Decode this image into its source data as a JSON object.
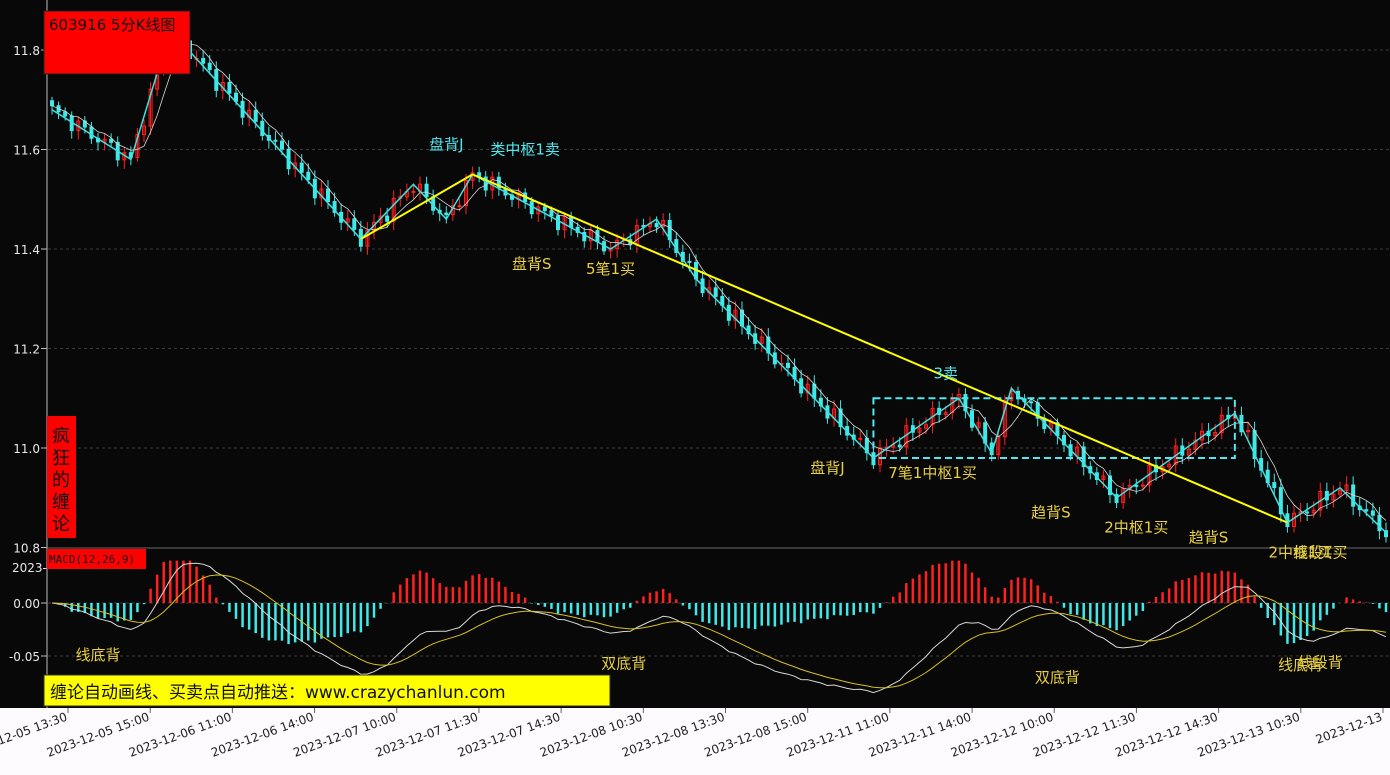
{
  "header": {
    "title": "603916 5分K线图"
  },
  "side_label": "疯狂的缠论",
  "macd_label": "MACD(12,26,9)",
  "macd_extra": "2023-",
  "footer_banner": "缠论自动画线、买卖点自动推送：www.crazychanlun.com",
  "colors": {
    "background": "#080808",
    "up": "#ff2020",
    "down": "#40e8e8",
    "bi_line": "#40e0e0",
    "trend_line": "#ffff00",
    "annotation": "#e8d040",
    "annotation_cyan": "#50e8f0",
    "macd_line": "#d8d8d8",
    "signal_line": "#d8c020",
    "title_bg": "#ff0000",
    "banner_bg": "#ffff00"
  },
  "chart_data": {
    "type": "candlestick",
    "price_axis": {
      "ticks": [
        "11.8",
        "11.6",
        "11.4",
        "11.2",
        "11.0",
        "10.8"
      ],
      "ylim": [
        10.79,
        11.83
      ]
    },
    "macd_axis": {
      "ticks": [
        "0.00",
        "-0.05"
      ],
      "ylim": [
        -0.09,
        0.04
      ]
    },
    "time_labels": [
      "2023-12-05 13:30",
      "2023-12-05 15:00",
      "2023-12-06 11:00",
      "2023-12-06 14:00",
      "2023-12-07 10:00",
      "2023-12-07 11:30",
      "2023-12-07 14:30",
      "2023-12-08 10:30",
      "2023-12-08 13:30",
      "2023-12-08 15:00",
      "2023-12-11 11:00",
      "2023-12-11 14:00",
      "2023-12-12 10:00",
      "2023-12-12 11:30",
      "2023-12-12 14:30",
      "2023-12-13 10:30",
      "2023-12-13"
    ],
    "bi_pivots": [
      [
        0,
        11.68
      ],
      [
        12,
        11.58
      ],
      [
        18,
        11.84
      ],
      [
        47,
        11.42
      ],
      [
        55,
        11.53
      ],
      [
        60,
        11.46
      ],
      [
        64,
        11.55
      ],
      [
        85,
        11.4
      ],
      [
        92,
        11.46
      ],
      [
        98,
        11.34
      ],
      [
        125,
        10.98
      ],
      [
        138,
        11.1
      ],
      [
        143,
        10.99
      ],
      [
        146,
        11.12
      ],
      [
        162,
        10.9
      ],
      [
        180,
        11.07
      ],
      [
        188,
        10.85
      ],
      [
        196,
        10.92
      ],
      [
        203,
        10.83
      ]
    ],
    "trend_lines": [
      [
        [
          47,
          11.42
        ],
        [
          64,
          11.55
        ]
      ],
      [
        [
          64,
          11.55
        ],
        [
          188,
          10.85
        ]
      ]
    ],
    "zhongshu": {
      "x": [
        125,
        180
      ],
      "price": [
        10.98,
        11.1
      ]
    },
    "annotations": [
      {
        "text": "盘背J",
        "x": 60,
        "price": 11.6,
        "color": "cyan"
      },
      {
        "text": "类中枢1卖",
        "x": 72,
        "price": 11.59,
        "color": "cyan"
      },
      {
        "text": "盘背S",
        "x": 73,
        "price": 11.36,
        "color": "yellow"
      },
      {
        "text": "5笔1买",
        "x": 85,
        "price": 11.35,
        "color": "yellow"
      },
      {
        "text": "3卖",
        "x": 136,
        "price": 11.14,
        "color": "cyan"
      },
      {
        "text": "盘背J",
        "x": 118,
        "price": 10.95,
        "color": "yellow"
      },
      {
        "text": "7笔1中枢1买",
        "x": 134,
        "price": 10.94,
        "color": "yellow"
      },
      {
        "text": "趋背S",
        "x": 152,
        "price": 10.86,
        "color": "yellow"
      },
      {
        "text": "2中枢1买",
        "x": 165,
        "price": 10.83,
        "color": "yellow"
      },
      {
        "text": "趋背S",
        "x": 176,
        "price": 10.81,
        "color": "yellow"
      },
      {
        "text": "2中枢1买",
        "x": 190,
        "price": 10.78,
        "color": "yellow"
      },
      {
        "text": "线段1买",
        "x": 193,
        "price": 10.78,
        "color": "yellow"
      }
    ],
    "macd_annotations": [
      {
        "text": "线底背",
        "x": 7,
        "value": -0.054
      },
      {
        "text": "双底背",
        "x": 87,
        "value": -0.062
      },
      {
        "text": "双底背",
        "x": 153,
        "value": -0.075
      },
      {
        "text": "线底背",
        "x": 190,
        "value": -0.063
      },
      {
        "text": "线段背",
        "x": 193,
        "value": -0.061
      }
    ]
  }
}
